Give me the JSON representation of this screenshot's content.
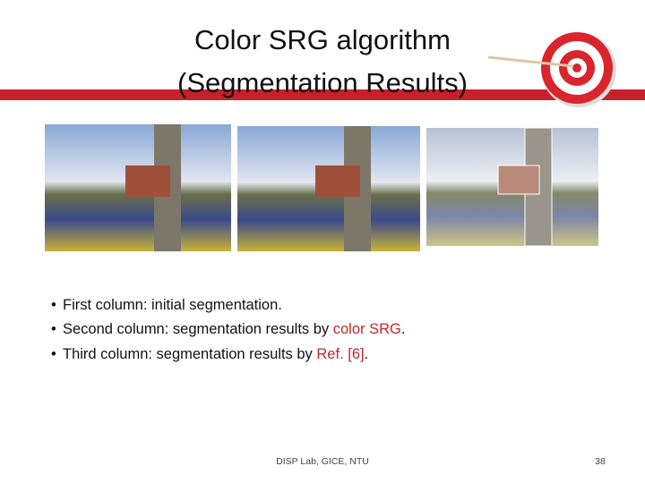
{
  "title": [
    "Color SRG algorithm",
    "(Segmentation Results)"
  ],
  "bullets": [
    [
      "First column:  initial segmentation."
    ],
    [
      "Second column: segmentation results by ",
      "color SRG",
      "."
    ],
    [
      "Third column: segmentation results by ",
      "Ref. [6]",
      "."
    ]
  ],
  "footer": "DISP Lab, GICE, NTU",
  "page_number": "38"
}
